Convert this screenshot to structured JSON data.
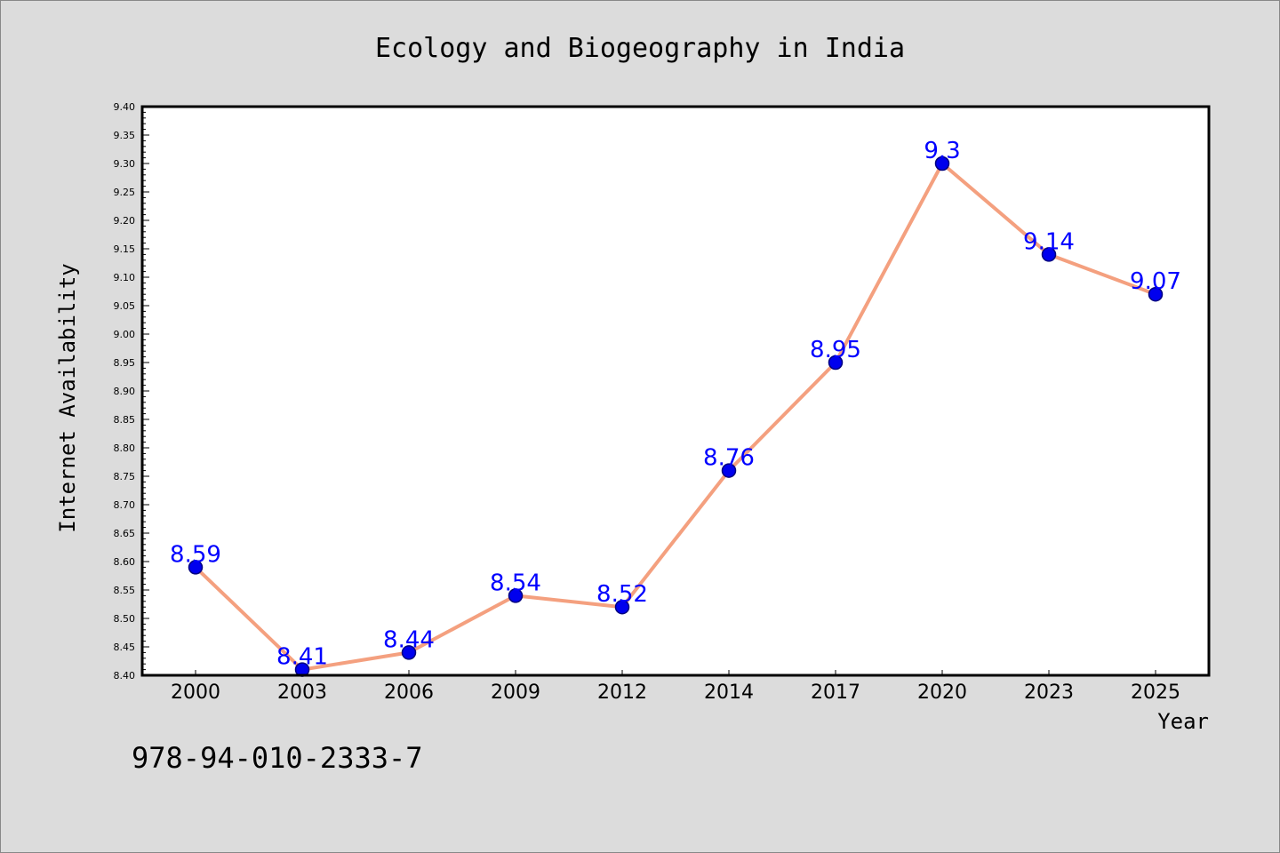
{
  "chart_data": {
    "type": "line",
    "title": "Ecology and Biogeography in India",
    "xlabel": "Year",
    "ylabel": "Internet Availability",
    "categories": [
      "2000",
      "2003",
      "2006",
      "2009",
      "2012",
      "2014",
      "2017",
      "2020",
      "2023",
      "2025"
    ],
    "series": [
      {
        "values": [
          8.59,
          8.41,
          8.44,
          8.54,
          8.52,
          8.76,
          8.95,
          9.3,
          9.14,
          9.07
        ],
        "labels": [
          "8.59",
          "8.41",
          "8.44",
          "8.54",
          "8.52",
          "8.76",
          "8.95",
          "9.3",
          "9.14",
          "9.07"
        ]
      }
    ],
    "ylim": [
      8.4,
      9.4
    ],
    "yticks": [
      "8.40",
      "8.45",
      "8.50",
      "8.55",
      "8.60",
      "8.65",
      "8.70",
      "8.75",
      "8.80",
      "8.85",
      "8.90",
      "8.95",
      "9.00",
      "9.05",
      "9.10",
      "9.15",
      "9.20",
      "9.25",
      "9.30",
      "9.35",
      "9.40"
    ],
    "grid": false,
    "legend": "none",
    "colors": {
      "line": "#f4a07f",
      "marker": "#0000ee",
      "marker_edge": "#000080",
      "data_label": "#0000ff",
      "background": "#dcdcdc",
      "plot_background": "#ffffff"
    }
  },
  "footer": {
    "isbn": "978-94-010-2333-7"
  }
}
